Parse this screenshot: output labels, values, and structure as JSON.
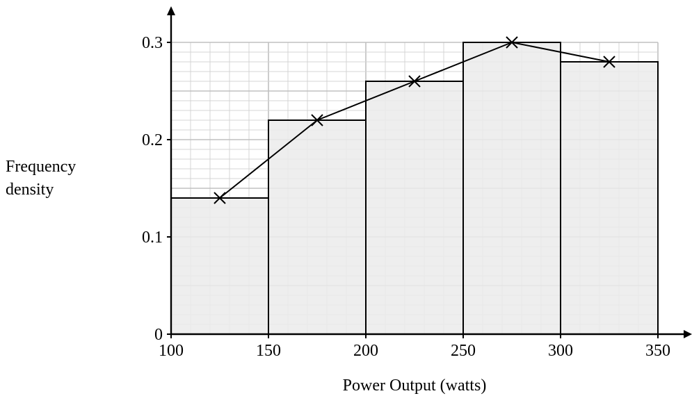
{
  "chart_data": {
    "type": "bar",
    "subtype": "histogram-with-frequency-polygon",
    "title": "",
    "xlabel": "Power Output (watts)",
    "ylabel_lines": [
      "Frequency",
      "density"
    ],
    "xlim": [
      100,
      350
    ],
    "ylim": [
      0,
      0.3
    ],
    "x_ticks": [
      100,
      150,
      200,
      250,
      300,
      350
    ],
    "x_tick_labels": [
      "100",
      "150",
      "200",
      "250",
      "300",
      "350"
    ],
    "y_ticks": [
      0,
      0.1,
      0.2,
      0.3
    ],
    "y_tick_labels": [
      "0",
      "0.1",
      "0.2",
      "0.3"
    ],
    "grid": {
      "major_x": 50,
      "minor_x": 10,
      "major_y": 0.05,
      "minor_y": 0.01
    },
    "bins": [
      {
        "from": 100,
        "to": 150,
        "value": 0.14
      },
      {
        "from": 150,
        "to": 200,
        "value": 0.22
      },
      {
        "from": 200,
        "to": 250,
        "value": 0.26
      },
      {
        "from": 250,
        "to": 300,
        "value": 0.3
      },
      {
        "from": 300,
        "to": 350,
        "value": 0.28
      }
    ],
    "polygon": {
      "x": [
        125,
        175,
        225,
        275,
        325
      ],
      "y": [
        0.14,
        0.22,
        0.26,
        0.3,
        0.28
      ],
      "marker": "x"
    },
    "colors": {
      "bar_fill": "#ebebeb",
      "bar_stroke": "#000000",
      "grid_minor": "#d4d4d4",
      "grid_major": "#c0c0c0",
      "axis": "#000000"
    }
  }
}
